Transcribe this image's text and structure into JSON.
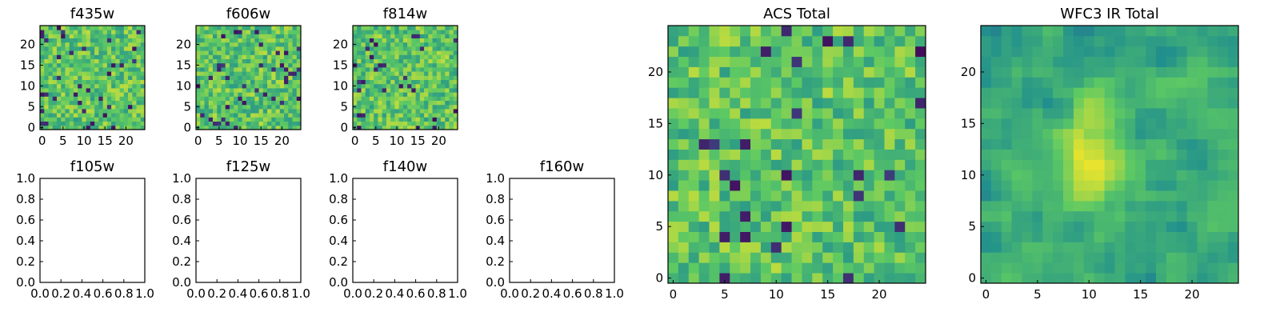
{
  "chart_data": [
    {
      "type": "heatmap",
      "title": "f435w",
      "rows": 25,
      "cols": 25,
      "seed": 11,
      "xticks": [
        0,
        5,
        10,
        15,
        20
      ],
      "yticks": [
        0,
        5,
        10,
        15,
        20
      ],
      "smooth": false
    },
    {
      "type": "heatmap",
      "title": "f606w",
      "rows": 25,
      "cols": 25,
      "seed": 23,
      "xticks": [
        0,
        5,
        10,
        15,
        20
      ],
      "yticks": [
        0,
        5,
        10,
        15,
        20
      ],
      "smooth": false
    },
    {
      "type": "heatmap",
      "title": "f814w",
      "rows": 25,
      "cols": 25,
      "seed": 37,
      "xticks": [
        0,
        5,
        10,
        15,
        20
      ],
      "yticks": [
        0,
        5,
        10,
        15,
        20
      ],
      "smooth": false
    },
    {
      "type": "empty",
      "title": "f105w",
      "ticks": [
        "0.0",
        "0.2",
        "0.4",
        "0.6",
        "0.8",
        "1.0"
      ]
    },
    {
      "type": "empty",
      "title": "f125w",
      "ticks": [
        "0.0",
        "0.2",
        "0.4",
        "0.6",
        "0.8",
        "1.0"
      ]
    },
    {
      "type": "empty",
      "title": "f140w",
      "ticks": [
        "0.0",
        "0.2",
        "0.4",
        "0.6",
        "0.8",
        "1.0"
      ]
    },
    {
      "type": "empty",
      "title": "f160w",
      "ticks": [
        "0.0",
        "0.2",
        "0.4",
        "0.6",
        "0.8",
        "1.0"
      ]
    },
    {
      "type": "heatmap",
      "title": "ACS Total",
      "rows": 25,
      "cols": 25,
      "seed": 53,
      "xticks": [
        0,
        5,
        10,
        15,
        20
      ],
      "yticks": [
        0,
        5,
        10,
        15,
        20
      ],
      "smooth": false
    },
    {
      "type": "heatmap",
      "title": "WFC3 IR Total",
      "rows": 25,
      "cols": 25,
      "seed": 71,
      "xticks": [
        0,
        5,
        10,
        15,
        20
      ],
      "yticks": [
        0,
        5,
        10,
        15,
        20
      ],
      "smooth": true
    }
  ],
  "colormap": [
    "#440154",
    "#3b528b",
    "#21908d",
    "#5dc963",
    "#fde725"
  ]
}
